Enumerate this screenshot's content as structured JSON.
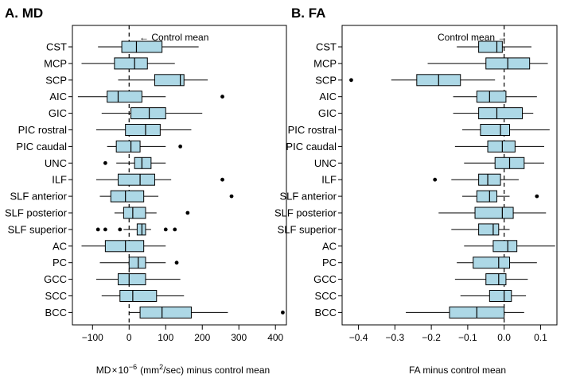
{
  "chart_data": [
    {
      "type": "boxplot",
      "title": "A. MD",
      "xlabel": {
        "prefix": "MD",
        "times": "×",
        "base": "10",
        "exponent": "−6",
        "unit_open": "(mm",
        "unit_sup": "2",
        "unit_close": "/sec) minus control mean"
      },
      "xlim": [
        -155,
        430
      ],
      "xticks": [
        -100,
        0,
        100,
        200,
        300,
        400
      ],
      "xtick_labels": [
        "−100",
        "0",
        "100",
        "200",
        "300",
        "400"
      ],
      "reference_label": "← Control mean",
      "categories": [
        "CST",
        "MCP",
        "SCP",
        "AIC",
        "GIC",
        "PIC rostral",
        "PIC caudal",
        "UNC",
        "ILF",
        "SLF anterior",
        "SLF posterior",
        "SLF superior",
        "AC",
        "PC",
        "GCC",
        "SCC",
        "BCC"
      ],
      "boxes": [
        {
          "wlo": -85,
          "q1": -20,
          "med": 20,
          "q3": 90,
          "whi": 190,
          "outliers": []
        },
        {
          "wlo": -130,
          "q1": -40,
          "med": 15,
          "q3": 50,
          "whi": 125,
          "outliers": []
        },
        {
          "wlo": -30,
          "q1": 70,
          "med": 140,
          "q3": 150,
          "whi": 215,
          "outliers": []
        },
        {
          "wlo": -140,
          "q1": -60,
          "med": -30,
          "q3": 35,
          "whi": 100,
          "outliers": [
            255
          ]
        },
        {
          "wlo": -75,
          "q1": 5,
          "med": 55,
          "q3": 100,
          "whi": 200,
          "outliers": []
        },
        {
          "wlo": -90,
          "q1": -10,
          "med": 45,
          "q3": 85,
          "whi": 170,
          "outliers": []
        },
        {
          "wlo": -60,
          "q1": -35,
          "med": 5,
          "q3": 30,
          "whi": 100,
          "outliers": [
            140
          ]
        },
        {
          "wlo": -35,
          "q1": 15,
          "med": 35,
          "q3": 60,
          "whi": 100,
          "outliers": [
            -65
          ]
        },
        {
          "wlo": -90,
          "q1": -30,
          "med": 30,
          "q3": 70,
          "whi": 115,
          "outliers": [
            255
          ]
        },
        {
          "wlo": -80,
          "q1": -50,
          "med": -10,
          "q3": 40,
          "whi": 80,
          "outliers": [
            280
          ]
        },
        {
          "wlo": -40,
          "q1": -15,
          "med": 10,
          "q3": 45,
          "whi": 75,
          "outliers": [
            160
          ]
        },
        {
          "wlo": -15,
          "q1": 22,
          "med": 35,
          "q3": 45,
          "whi": 60,
          "outliers": [
            -85,
            -65,
            -25,
            100,
            125
          ]
        },
        {
          "wlo": -130,
          "q1": -65,
          "med": -10,
          "q3": 40,
          "whi": 100,
          "outliers": []
        },
        {
          "wlo": -80,
          "q1": 0,
          "med": 25,
          "q3": 45,
          "whi": 100,
          "outliers": [
            130
          ]
        },
        {
          "wlo": -90,
          "q1": -30,
          "med": 0,
          "q3": 45,
          "whi": 140,
          "outliers": []
        },
        {
          "wlo": -75,
          "q1": -25,
          "med": 10,
          "q3": 75,
          "whi": 150,
          "outliers": []
        },
        {
          "wlo": 0,
          "q1": 30,
          "med": 90,
          "q3": 170,
          "whi": 270,
          "outliers": [
            420
          ]
        }
      ]
    },
    {
      "type": "boxplot",
      "title": "B. FA",
      "xlabel_text": "FA minus control mean",
      "xlim": [
        -0.445,
        0.145
      ],
      "xticks": [
        -0.4,
        -0.3,
        -0.2,
        -0.1,
        0.0,
        0.1
      ],
      "xtick_labels": [
        "−0.4",
        "−0.3",
        "−0.2",
        "−0.1",
        "0.0",
        "0.1"
      ],
      "reference_label": "Control mean →",
      "categories": [
        "CST",
        "MCP",
        "SCP",
        "AIC",
        "GIC",
        "PIC rostral",
        "PIC caudal",
        "UNC",
        "ILF",
        "SLF anterior",
        "SLF posterior",
        "SLF superior",
        "AC",
        "PC",
        "GCC",
        "SCC",
        "BCC"
      ],
      "boxes": [
        {
          "wlo": -0.13,
          "q1": -0.07,
          "med": -0.02,
          "q3": -0.005,
          "whi": 0.075,
          "outliers": []
        },
        {
          "wlo": -0.21,
          "q1": -0.05,
          "med": 0.01,
          "q3": 0.07,
          "whi": 0.12,
          "outliers": []
        },
        {
          "wlo": -0.31,
          "q1": -0.24,
          "med": -0.18,
          "q3": -0.12,
          "whi": -0.025,
          "outliers": [
            -0.42
          ]
        },
        {
          "wlo": -0.14,
          "q1": -0.075,
          "med": -0.04,
          "q3": 0.005,
          "whi": 0.09,
          "outliers": []
        },
        {
          "wlo": -0.14,
          "q1": -0.07,
          "med": -0.02,
          "q3": 0.05,
          "whi": 0.08,
          "outliers": []
        },
        {
          "wlo": -0.115,
          "q1": -0.065,
          "med": -0.01,
          "q3": 0.015,
          "whi": 0.125,
          "outliers": []
        },
        {
          "wlo": -0.135,
          "q1": -0.045,
          "med": -0.005,
          "q3": 0.03,
          "whi": 0.11,
          "outliers": []
        },
        {
          "wlo": -0.11,
          "q1": -0.025,
          "med": 0.015,
          "q3": 0.055,
          "whi": 0.11,
          "outliers": []
        },
        {
          "wlo": -0.145,
          "q1": -0.07,
          "med": -0.045,
          "q3": -0.01,
          "whi": 0.04,
          "outliers": [
            -0.19
          ]
        },
        {
          "wlo": -0.115,
          "q1": -0.075,
          "med": -0.04,
          "q3": -0.02,
          "whi": 0.015,
          "outliers": [
            0.09
          ]
        },
        {
          "wlo": -0.18,
          "q1": -0.08,
          "med": -0.005,
          "q3": 0.025,
          "whi": 0.115,
          "outliers": []
        },
        {
          "wlo": -0.145,
          "q1": -0.07,
          "med": -0.03,
          "q3": -0.015,
          "whi": 0.015,
          "outliers": []
        },
        {
          "wlo": -0.11,
          "q1": -0.03,
          "med": 0.01,
          "q3": 0.035,
          "whi": 0.14,
          "outliers": []
        },
        {
          "wlo": -0.13,
          "q1": -0.085,
          "med": -0.015,
          "q3": 0.015,
          "whi": 0.09,
          "outliers": []
        },
        {
          "wlo": -0.135,
          "q1": -0.05,
          "med": -0.015,
          "q3": 0.005,
          "whi": 0.065,
          "outliers": []
        },
        {
          "wlo": -0.12,
          "q1": -0.04,
          "med": 0.0,
          "q3": 0.02,
          "whi": 0.06,
          "outliers": []
        },
        {
          "wlo": -0.27,
          "q1": -0.15,
          "med": -0.075,
          "q3": 0.0,
          "whi": 0.055,
          "outliers": []
        }
      ]
    }
  ],
  "colors": {
    "box_fill": "#add8e6",
    "stroke": "#000000",
    "background": "#ffffff"
  }
}
